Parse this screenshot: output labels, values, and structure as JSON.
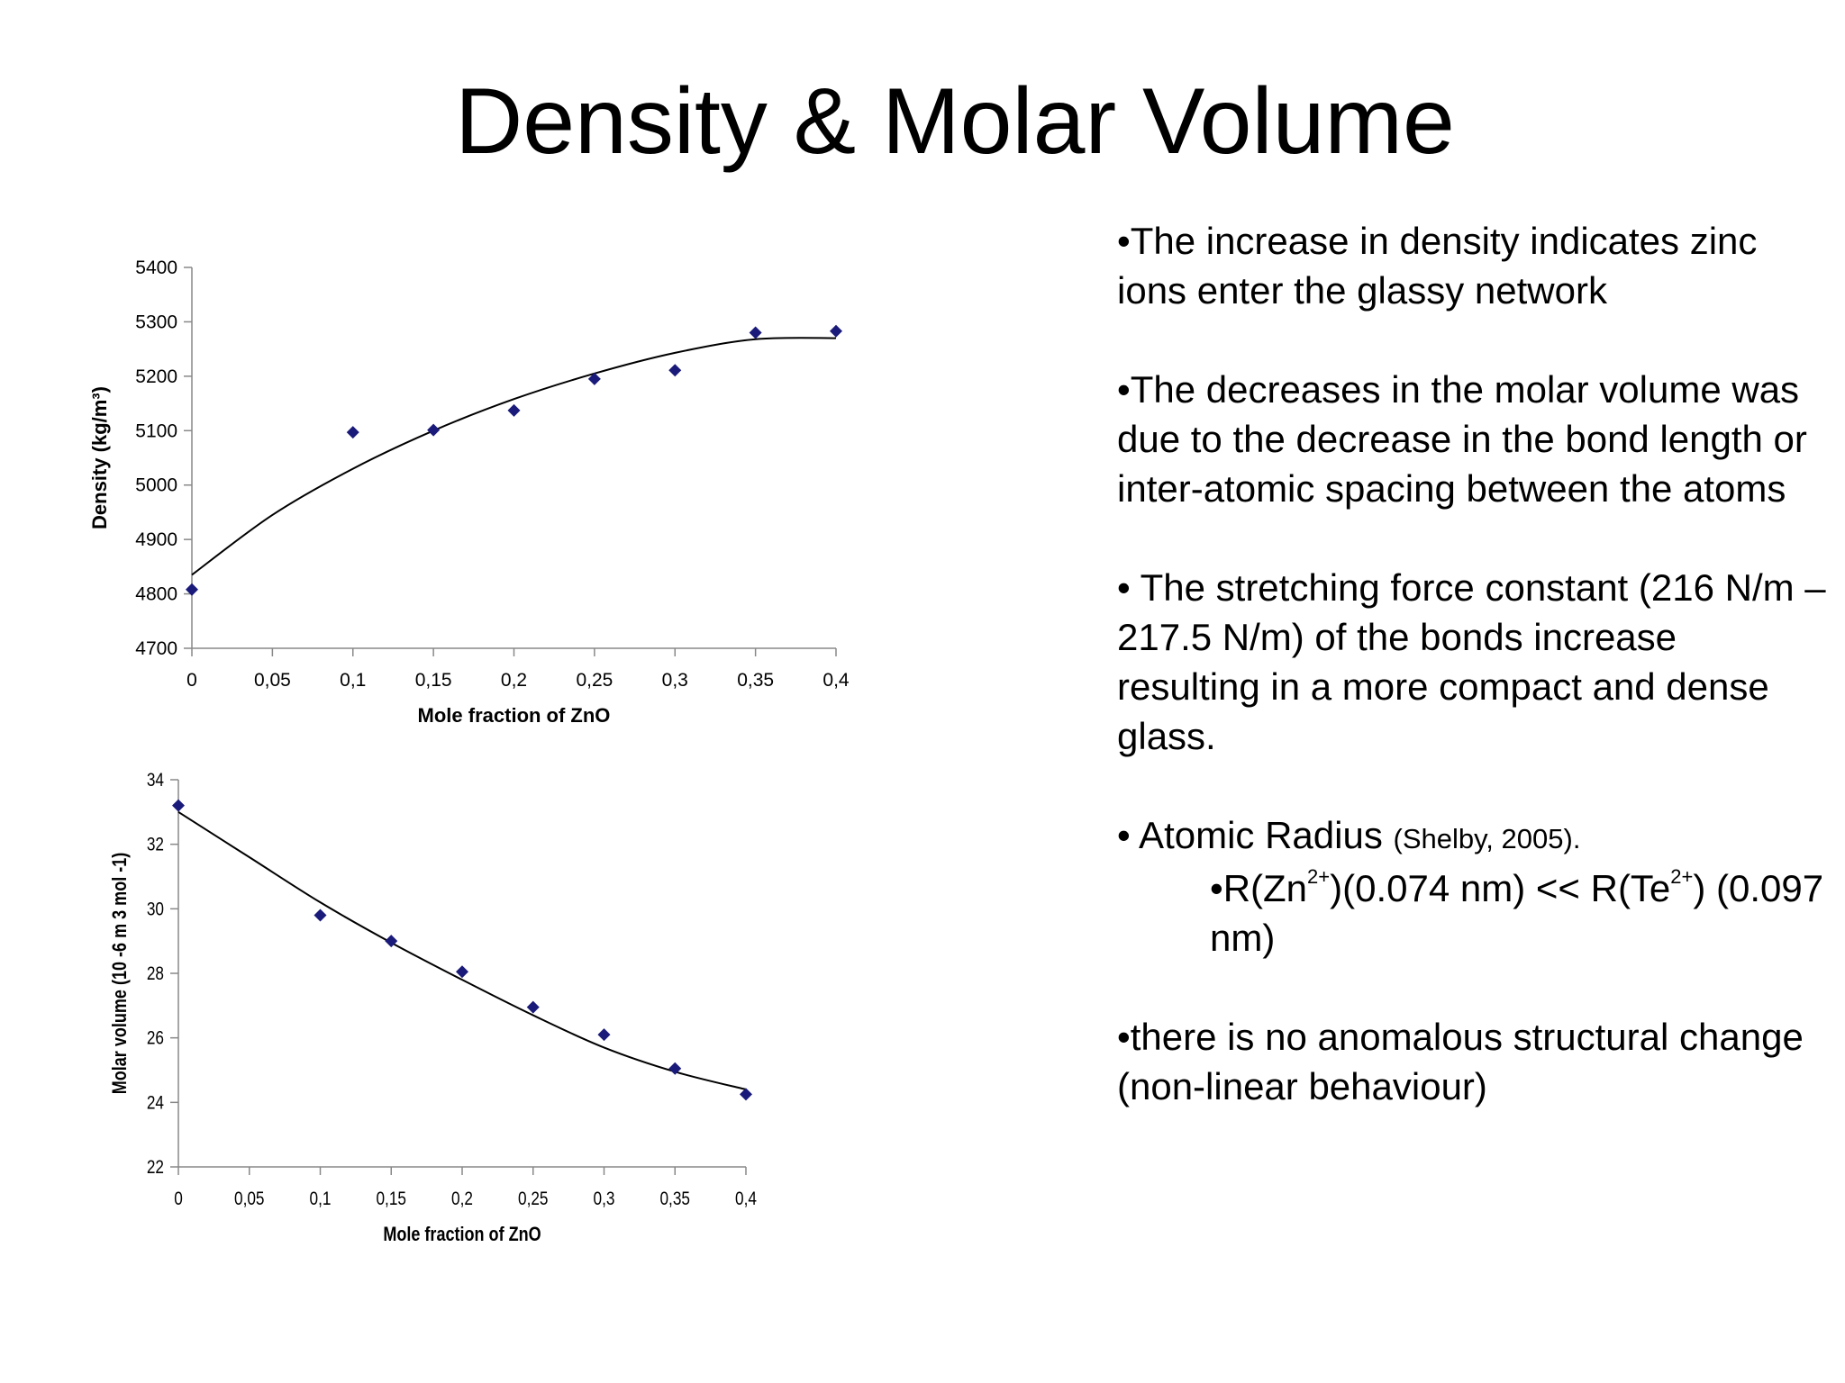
{
  "slide": {
    "title": "Density & Molar Volume"
  },
  "chart_data": [
    {
      "type": "scatter",
      "title": "",
      "xlabel": "Mole fraction of ZnO",
      "ylabel": "Density (kg/m³)",
      "xlim": [
        0,
        0.4
      ],
      "ylim": [
        4700,
        5400
      ],
      "x_ticks": [
        "0",
        "0,05",
        "0,1",
        "0,15",
        "0,2",
        "0,25",
        "0,3",
        "0,35",
        "0,4"
      ],
      "y_ticks": [
        "4700",
        "4800",
        "4900",
        "5000",
        "5100",
        "5200",
        "5300",
        "5400"
      ],
      "grid": false,
      "marker_color": "#1a1a7a",
      "series": [
        {
          "points": [
            [
              0,
              4808
            ],
            [
              0.1,
              5097
            ],
            [
              0.15,
              5101
            ],
            [
              0.2,
              5137
            ],
            [
              0.25,
              5195
            ],
            [
              0.3,
              5211
            ],
            [
              0.35,
              5280
            ],
            [
              0.4,
              5283
            ]
          ]
        }
      ],
      "trendline": {
        "points": [
          [
            0,
            4835
          ],
          [
            0.05,
            4945
          ],
          [
            0.1,
            5030
          ],
          [
            0.15,
            5100
          ],
          [
            0.2,
            5158
          ],
          [
            0.25,
            5205
          ],
          [
            0.3,
            5243
          ],
          [
            0.35,
            5268
          ],
          [
            0.4,
            5270
          ]
        ]
      }
    },
    {
      "type": "scatter",
      "title": "",
      "xlabel": "Mole fraction of ZnO",
      "ylabel": "Molar volume (10 -6 m 3 mol -1)",
      "xlim": [
        0,
        0.4
      ],
      "ylim": [
        22,
        34
      ],
      "x_ticks": [
        "0",
        "0,05",
        "0,1",
        "0,15",
        "0,2",
        "0,25",
        "0,3",
        "0,35",
        "0,4"
      ],
      "y_ticks": [
        "22",
        "24",
        "26",
        "28",
        "30",
        "32",
        "34"
      ],
      "grid": false,
      "marker_color": "#1a1a7a",
      "series": [
        {
          "points": [
            [
              0,
              33.2
            ],
            [
              0.1,
              29.8
            ],
            [
              0.15,
              29.0
            ],
            [
              0.2,
              28.05
            ],
            [
              0.25,
              26.95
            ],
            [
              0.3,
              26.1
            ],
            [
              0.35,
              25.05
            ],
            [
              0.4,
              24.25
            ]
          ]
        }
      ],
      "trendline": {
        "points": [
          [
            0,
            33.0
          ],
          [
            0.05,
            31.6
          ],
          [
            0.1,
            30.2
          ],
          [
            0.15,
            28.95
          ],
          [
            0.2,
            27.8
          ],
          [
            0.25,
            26.7
          ],
          [
            0.3,
            25.7
          ],
          [
            0.35,
            24.95
          ],
          [
            0.4,
            24.4
          ]
        ]
      }
    }
  ],
  "bullets": {
    "b1": "•The increase in density  indicates zinc ions enter the glassy network",
    "b2": "•The decreases in the molar volume  was due to the decrease in the bond length or inter-atomic spacing between the atoms",
    "b3": "• The stretching force constant (216 N/m – 217.5 N/m) of the bonds increase resulting in a more compact and dense glass.",
    "b4_main": "• Atomic Radius",
    "b4_note": "(Shelby, 2005).",
    "b4_sub_a": "•R(Zn",
    "b4_sub_zn_charge": "2+",
    "b4_sub_b": ")(0.074 nm) << R(Te",
    "b4_sub_te_charge": "2+",
    "b4_sub_c": ") (0.097 nm)",
    "b5": "•there is no anomalous structural change (non-linear behaviour)"
  }
}
